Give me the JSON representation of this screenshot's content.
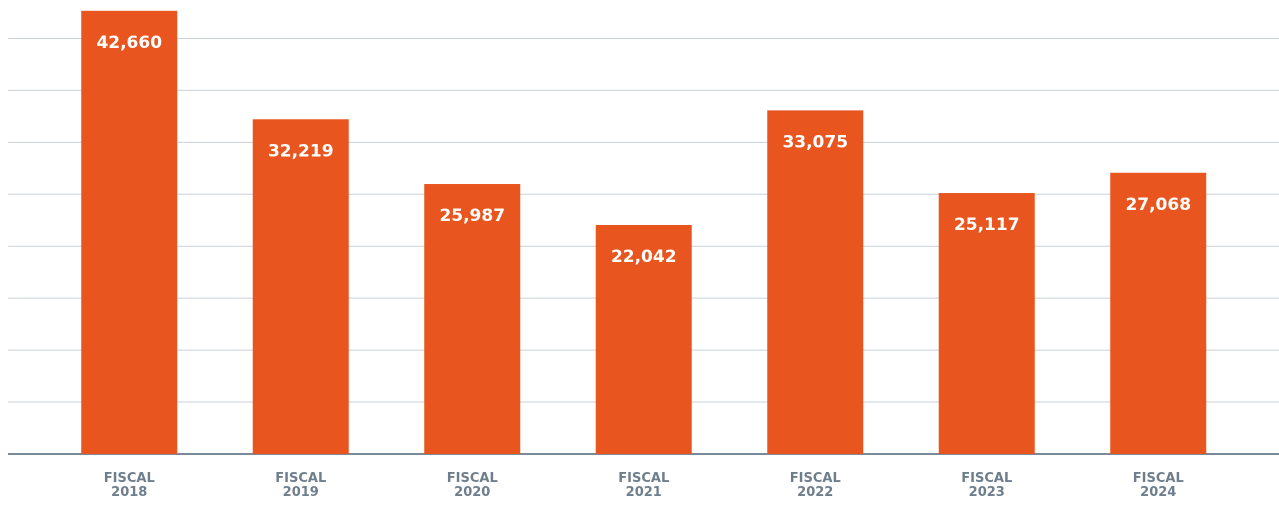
{
  "chart_data": {
    "type": "bar",
    "categories": [
      "FISCAL 2018",
      "FISCAL 2019",
      "FISCAL 2020",
      "FISCAL 2021",
      "FISCAL 2022",
      "FISCAL 2023",
      "FISCAL 2024"
    ],
    "values": [
      42660,
      32219,
      25987,
      22042,
      33075,
      25117,
      27068
    ],
    "value_labels": [
      "42,660",
      "32,219",
      "25,987",
      "22,042",
      "33,075",
      "25,117",
      "27,068"
    ],
    "color": "#e8551f",
    "ylim": [
      0,
      43700
    ],
    "yticks": [
      0,
      5000,
      10000,
      15000,
      20000,
      25000,
      30000,
      35000,
      40000
    ],
    "grid": true
  }
}
